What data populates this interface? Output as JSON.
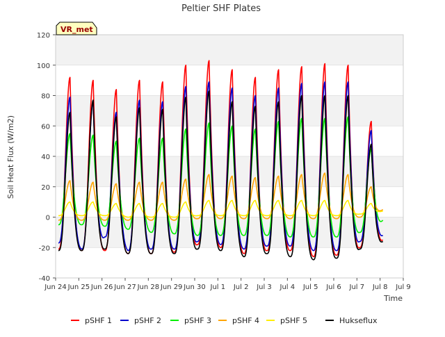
{
  "chart_data": {
    "type": "line",
    "title": "Peltier SHF Plates",
    "xlabel": "Time",
    "ylabel": "Soil Heat Flux (W/m2)",
    "badge": "VR_met",
    "xlim": [
      0,
      15
    ],
    "ylim": [
      -40,
      120
    ],
    "yticks": [
      -40,
      -20,
      0,
      20,
      40,
      60,
      80,
      100,
      120
    ],
    "xticks": [
      {
        "v": 0,
        "label": "Jun 24"
      },
      {
        "v": 1,
        "label": "Jun 25"
      },
      {
        "v": 2,
        "label": "Jun 26"
      },
      {
        "v": 3,
        "label": "Jun 27"
      },
      {
        "v": 4,
        "label": "Jun 28"
      },
      {
        "v": 5,
        "label": "Jun 29"
      },
      {
        "v": 6,
        "label": "Jun 30"
      },
      {
        "v": 7,
        "label": "Jul 1"
      },
      {
        "v": 8,
        "label": "Jul 2"
      },
      {
        "v": 9,
        "label": "Jul 3"
      },
      {
        "v": 10,
        "label": "Jul 4"
      },
      {
        "v": 11,
        "label": "Jul 5"
      },
      {
        "v": 12,
        "label": "Jul 6"
      },
      {
        "v": 13,
        "label": "Jul 7"
      },
      {
        "v": 14,
        "label": "Jul 8"
      },
      {
        "v": 15,
        "label": "Jul 9"
      }
    ],
    "bands": [
      [
        -20,
        0
      ],
      [
        20,
        40
      ],
      [
        60,
        80
      ],
      [
        100,
        120
      ]
    ],
    "series": [
      {
        "name": "pSHF 1",
        "color": "#ff0000",
        "peaks": [
          92,
          90,
          84,
          90,
          89,
          100,
          103,
          97,
          92,
          97,
          99,
          101,
          100,
          63
        ],
        "mins": [
          -21,
          -22,
          -22,
          -24,
          -24,
          -23,
          -18,
          -20,
          -24,
          -22,
          -22,
          -26,
          -25,
          -20,
          -15
        ]
      },
      {
        "name": "pSHF 2",
        "color": "#0000cc",
        "peaks": [
          79,
          76,
          69,
          77,
          76,
          86,
          89,
          85,
          80,
          85,
          88,
          89,
          89,
          57
        ],
        "mins": [
          -17,
          -21,
          -13,
          -22,
          -21,
          -21,
          -16,
          -18,
          -21,
          -19,
          -19,
          -22,
          -22,
          -16,
          -12
        ]
      },
      {
        "name": "pSHF 3",
        "color": "#00ee00",
        "peaks": [
          55,
          54,
          50,
          52,
          52,
          58,
          62,
          60,
          58,
          63,
          65,
          65,
          66,
          45
        ],
        "mins": [
          -5,
          -5,
          -6,
          -8,
          -10,
          -11,
          -12,
          -12,
          -12,
          -12,
          -13,
          -13,
          -13,
          -10,
          -2
        ]
      },
      {
        "name": "pSHF 4",
        "color": "#ffa500",
        "peaks": [
          24,
          23,
          22,
          23,
          23,
          25,
          28,
          27,
          26,
          27,
          28,
          29,
          28,
          20
        ],
        "mins": [
          -2,
          -2,
          -2,
          -2,
          -2,
          -2,
          -1,
          -1,
          -1,
          -1,
          -1,
          -1,
          -1,
          0,
          5
        ]
      },
      {
        "name": "pSHF 5",
        "color": "#ffee00",
        "peaks": [
          10,
          10,
          9,
          9,
          9,
          10,
          11,
          11,
          11,
          11,
          11,
          11,
          11,
          9
        ],
        "mins": [
          1,
          1,
          1,
          0,
          0,
          0,
          1,
          1,
          1,
          1,
          1,
          1,
          1,
          2,
          4
        ]
      },
      {
        "name": "Hukseflux",
        "color": "#000000",
        "peaks": [
          69,
          77,
          66,
          72,
          71,
          79,
          83,
          76,
          73,
          76,
          80,
          80,
          80,
          48
        ],
        "mins": [
          -22,
          -22,
          -21,
          -24,
          -24,
          -24,
          -21,
          -22,
          -26,
          -24,
          -26,
          -28,
          -27,
          -21,
          -16
        ]
      }
    ]
  }
}
